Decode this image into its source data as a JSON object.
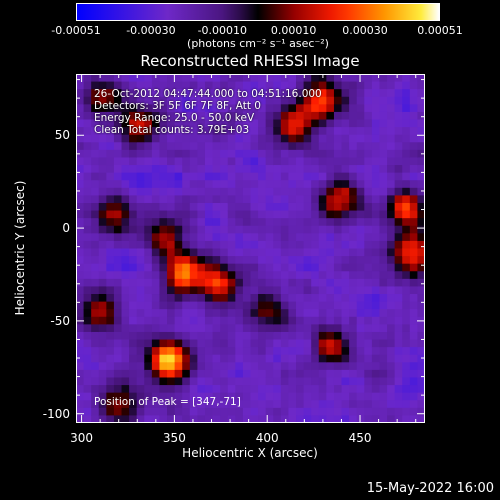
{
  "colorbar": {
    "ticks": [
      "-0.00051",
      "-0.00030",
      "-0.00010",
      "0.00010",
      "0.00030",
      "0.00051"
    ],
    "tick_values": [
      -0.00051,
      -0.0003,
      -0.0001,
      0.0001,
      0.0003,
      0.00051
    ],
    "units": "(photons cm⁻² s⁻¹ asec⁻²)",
    "range": [
      -0.00051,
      0.00051
    ]
  },
  "info": {
    "time_range": "26-Oct-2012 04:47:44.000 to 04:51:16.000",
    "detectors": "Detectors: 3F 5F 6F 7F 8F, Att 0",
    "energy": "Energy Range: 25.0 - 50.0 keV",
    "clean": "Clean     Total counts: 3.79E+03",
    "peak": "Position of Peak = [347,-71]"
  },
  "footer": {
    "date": "15-May-2022 16:00"
  },
  "chart_data": {
    "type": "heatmap",
    "title": "Reconstructed RHESSI Image",
    "xlabel": "Heliocentric X (arcsec)",
    "ylabel": "Heliocentric Y (arcsec)",
    "xlim": [
      297,
      485
    ],
    "ylim": [
      -105,
      83
    ],
    "x_ticks": [
      300,
      350,
      400,
      450
    ],
    "y_ticks": [
      -100,
      -50,
      0,
      50
    ],
    "peak_position": [
      347,
      -71
    ],
    "colormap": "rhessi-fire (blue-purple-black-red-yellow-white)",
    "bright_sources": [
      {
        "x": 347,
        "y": -71,
        "intensity": 1.0
      },
      {
        "x": 355,
        "y": -25,
        "intensity": 0.78
      },
      {
        "x": 375,
        "y": -30,
        "intensity": 0.62
      },
      {
        "x": 345,
        "y": -5,
        "intensity": 0.55
      },
      {
        "x": 318,
        "y": 5,
        "intensity": 0.5
      },
      {
        "x": 310,
        "y": -45,
        "intensity": 0.5
      },
      {
        "x": 330,
        "y": 55,
        "intensity": 0.55
      },
      {
        "x": 310,
        "y": 70,
        "intensity": 0.5
      },
      {
        "x": 430,
        "y": 70,
        "intensity": 0.72
      },
      {
        "x": 415,
        "y": 55,
        "intensity": 0.6
      },
      {
        "x": 475,
        "y": 10,
        "intensity": 0.7
      },
      {
        "x": 440,
        "y": 15,
        "intensity": 0.6
      },
      {
        "x": 478,
        "y": -15,
        "intensity": 0.75
      },
      {
        "x": 435,
        "y": -65,
        "intensity": 0.55
      },
      {
        "x": 320,
        "y": -95,
        "intensity": 0.5
      },
      {
        "x": 400,
        "y": -45,
        "intensity": 0.4
      }
    ]
  }
}
